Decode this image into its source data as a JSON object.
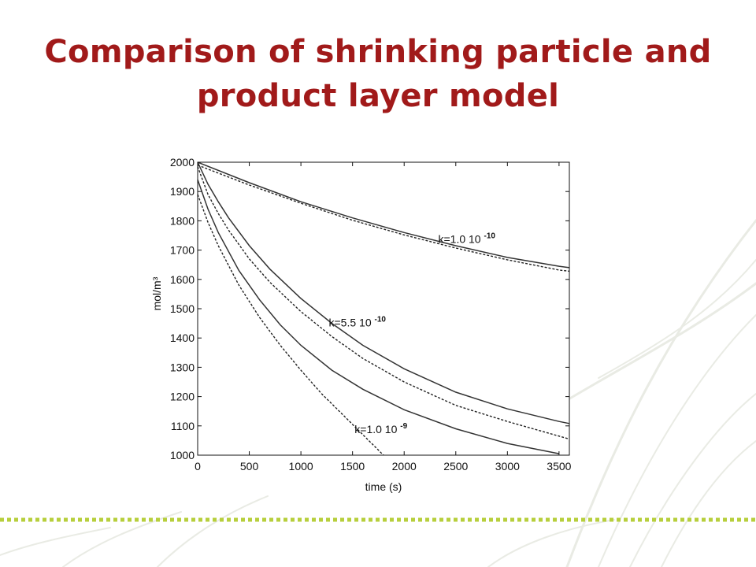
{
  "slide": {
    "title": "Comparison of shrinking particle and product layer model",
    "title_color": "#a11a1a",
    "footer_dots_color": "#b7cf3c"
  },
  "chart_data": {
    "type": "line",
    "title": "",
    "xlabel": "time (s)",
    "ylabel": "mol/m³",
    "xlim": [
      0,
      3600
    ],
    "ylim": [
      1000,
      2000
    ],
    "x_ticks": [
      0,
      500,
      1000,
      1500,
      2000,
      2500,
      3000,
      3500
    ],
    "y_ticks": [
      1000,
      1100,
      1200,
      1300,
      1400,
      1500,
      1600,
      1700,
      1800,
      1900,
      2000
    ],
    "grid": false,
    "annotations": [
      {
        "base": "k=1.0 10",
        "exp": "-10",
        "x": 2330,
        "y": 1725
      },
      {
        "base": "k=5.5 10",
        "exp": "-10",
        "x": 1270,
        "y": 1440
      },
      {
        "base": "k=1.0 10",
        "exp": "-9",
        "x": 1520,
        "y": 1075
      }
    ],
    "series": [
      {
        "style": "solid",
        "x": [
          0,
          500,
          1000,
          1500,
          2000,
          2500,
          3000,
          3500,
          3600
        ],
        "y": [
          2000,
          1930,
          1865,
          1810,
          1760,
          1715,
          1675,
          1645,
          1640
        ]
      },
      {
        "style": "dashed",
        "x": [
          0,
          500,
          1000,
          1500,
          2000,
          2500,
          3000,
          3500,
          3600
        ],
        "y": [
          1990,
          1922,
          1860,
          1802,
          1752,
          1707,
          1667,
          1632,
          1628
        ]
      },
      {
        "style": "solid",
        "x": [
          0,
          100,
          200,
          300,
          500,
          700,
          1000,
          1300,
          1600,
          2000,
          2500,
          3000,
          3500,
          3600
        ],
        "y": [
          2000,
          1925,
          1865,
          1810,
          1715,
          1635,
          1535,
          1450,
          1375,
          1295,
          1215,
          1158,
          1115,
          1108
        ]
      },
      {
        "style": "dashed",
        "x": [
          0,
          100,
          200,
          300,
          500,
          700,
          1000,
          1300,
          1600,
          2000,
          2500,
          3000,
          3500,
          3600
        ],
        "y": [
          1985,
          1890,
          1825,
          1768,
          1670,
          1590,
          1490,
          1405,
          1330,
          1250,
          1170,
          1115,
          1065,
          1055
        ]
      },
      {
        "style": "solid",
        "x": [
          0,
          100,
          200,
          400,
          600,
          800,
          1000,
          1300,
          1600,
          2000,
          2500,
          3000,
          3500
        ],
        "y": [
          1940,
          1840,
          1760,
          1630,
          1530,
          1445,
          1375,
          1290,
          1225,
          1155,
          1090,
          1040,
          1005
        ]
      },
      {
        "style": "dashed",
        "x": [
          0,
          100,
          200,
          400,
          600,
          800,
          1000,
          1200,
          1400,
          1600,
          1800
        ],
        "y": [
          1890,
          1795,
          1715,
          1580,
          1470,
          1375,
          1290,
          1210,
          1140,
          1070,
          1000
        ]
      }
    ]
  }
}
